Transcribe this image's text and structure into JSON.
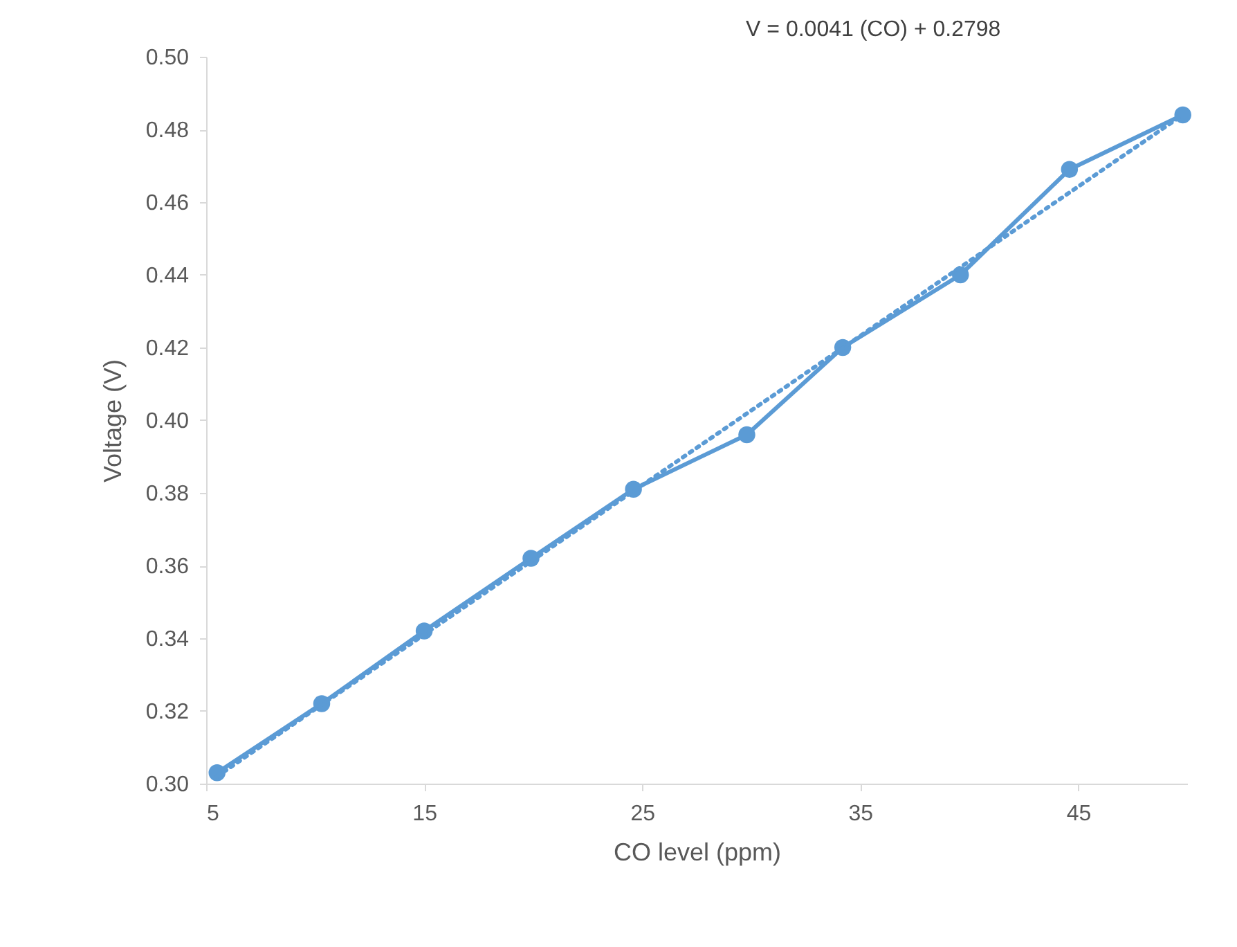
{
  "chart_data": {
    "type": "line",
    "xlabel": "CO level (ppm)",
    "ylabel": "Voltage (V)",
    "annotations": [
      "V = 0.0041 (CO) + 0.2798"
    ],
    "xlim": [
      5,
      50
    ],
    "xticks": [
      5,
      15,
      25,
      35,
      45
    ],
    "ylim": [
      0.3,
      0.5
    ],
    "yticks": [
      {
        "value": 0.3,
        "label": "0.30"
      },
      {
        "value": 0.32,
        "label": "0.32"
      },
      {
        "value": 0.34,
        "label": "0.34"
      },
      {
        "value": 0.36,
        "label": "0.36"
      },
      {
        "value": 0.38,
        "label": "0.38"
      },
      {
        "value": 0.4,
        "label": "0.40"
      },
      {
        "value": 0.42,
        "label": "0.42"
      },
      {
        "value": 0.44,
        "label": "0.44"
      },
      {
        "value": 0.46,
        "label": "0.46"
      },
      {
        "value": 0.48,
        "label": "0.48"
      },
      {
        "value": 0.5,
        "label": "0.50"
      }
    ],
    "grid": false,
    "series": [
      {
        "color": "#5b9bd5",
        "marker": "circle",
        "line_style": "solid",
        "x": [
          5.5,
          10.3,
          15,
          19.9,
          24.6,
          29.8,
          34.2,
          39.6,
          44.6,
          49.8
        ],
        "values": [
          0.303,
          0.322,
          0.342,
          0.362,
          0.381,
          0.396,
          0.42,
          0.44,
          0.469,
          0.484
        ]
      },
      {
        "color": "#5b9bd5",
        "marker": "none",
        "line_style": "dotted",
        "x": [
          5.5,
          49.8
        ],
        "values": [
          0.302,
          0.484
        ]
      }
    ]
  }
}
